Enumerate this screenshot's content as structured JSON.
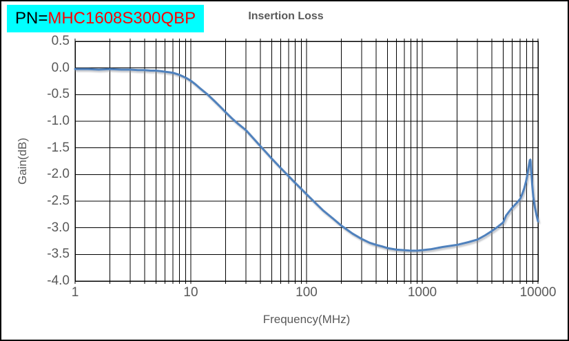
{
  "window": {
    "background": "#ffffff",
    "border_color": "#000000"
  },
  "header": {
    "pn_prefix": "PN=",
    "pn_value": "MHC1608S300QBP",
    "pn_box_bg": "#00ffff",
    "pn_prefix_color": "#000000",
    "pn_value_color": "#ff0000"
  },
  "styles": {
    "title_color": "#595959",
    "tick_label_color": "#595959",
    "axis_title_color": "#595959",
    "gridline_color": "#000000",
    "plot_border_color": "#000000",
    "curve_color": "#4f81bd",
    "curve_shadow_color": "#8a8f99"
  },
  "chart_data": {
    "type": "line",
    "title": "Insertion Loss",
    "xlabel": "Frequency(MHz)",
    "ylabel": "Gain(dB)",
    "x_scale": "log",
    "xlim": [
      1,
      10000
    ],
    "ylim": [
      -4.0,
      0.5
    ],
    "grid": "log minor+major vertical gridlines, major horizontal gridlines every 0.5 dB",
    "legend": "none",
    "x_ticks": [
      1,
      10,
      100,
      1000,
      10000
    ],
    "x_tick_labels": [
      "1",
      "10",
      "100",
      "1000",
      "10000"
    ],
    "y_ticks": [
      0.5,
      0.0,
      -0.5,
      -1.0,
      -1.5,
      -2.0,
      -2.5,
      -3.0,
      -3.5,
      -4.0
    ],
    "y_tick_labels": [
      "0.5",
      "0.0",
      "-0.5",
      "-1.0",
      "-1.5",
      "-2.0",
      "-2.5",
      "-3.0",
      "-3.5",
      "-4.0"
    ],
    "series": [
      {
        "name": "Insertion Loss",
        "color": "#4f81bd",
        "points": [
          [
            1,
            -0.02
          ],
          [
            1.3,
            -0.02
          ],
          [
            1.6,
            -0.03
          ],
          [
            2,
            -0.02
          ],
          [
            2.5,
            -0.03
          ],
          [
            3,
            -0.03
          ],
          [
            3.5,
            -0.04
          ],
          [
            4,
            -0.04
          ],
          [
            4.5,
            -0.05
          ],
          [
            5,
            -0.05
          ],
          [
            5.5,
            -0.06
          ],
          [
            6,
            -0.07
          ],
          [
            6.5,
            -0.08
          ],
          [
            7,
            -0.09
          ],
          [
            7.5,
            -0.11
          ],
          [
            8,
            -0.13
          ],
          [
            9,
            -0.18
          ],
          [
            10,
            -0.24
          ],
          [
            11,
            -0.31
          ],
          [
            12,
            -0.38
          ],
          [
            14,
            -0.5
          ],
          [
            16,
            -0.62
          ],
          [
            18,
            -0.73
          ],
          [
            20,
            -0.83
          ],
          [
            23,
            -0.96
          ],
          [
            26,
            -1.06
          ],
          [
            30,
            -1.17
          ],
          [
            35,
            -1.33
          ],
          [
            40,
            -1.47
          ],
          [
            45,
            -1.59
          ],
          [
            50,
            -1.7
          ],
          [
            60,
            -1.88
          ],
          [
            70,
            -2.03
          ],
          [
            80,
            -2.16
          ],
          [
            90,
            -2.27
          ],
          [
            100,
            -2.37
          ],
          [
            120,
            -2.54
          ],
          [
            140,
            -2.68
          ],
          [
            170,
            -2.83
          ],
          [
            200,
            -2.96
          ],
          [
            250,
            -3.11
          ],
          [
            300,
            -3.21
          ],
          [
            350,
            -3.28
          ],
          [
            400,
            -3.32
          ],
          [
            450,
            -3.35
          ],
          [
            500,
            -3.38
          ],
          [
            600,
            -3.41
          ],
          [
            700,
            -3.42
          ],
          [
            800,
            -3.43
          ],
          [
            900,
            -3.43
          ],
          [
            1000,
            -3.42
          ],
          [
            1200,
            -3.4
          ],
          [
            1500,
            -3.36
          ],
          [
            2000,
            -3.32
          ],
          [
            2500,
            -3.27
          ],
          [
            3000,
            -3.22
          ],
          [
            3500,
            -3.14
          ],
          [
            4000,
            -3.06
          ],
          [
            4500,
            -2.98
          ],
          [
            5000,
            -2.9
          ],
          [
            5300,
            -2.77
          ],
          [
            5700,
            -2.68
          ],
          [
            6000,
            -2.62
          ],
          [
            6500,
            -2.54
          ],
          [
            7000,
            -2.46
          ],
          [
            7300,
            -2.37
          ],
          [
            7600,
            -2.26
          ],
          [
            7900,
            -2.12
          ],
          [
            8100,
            -2.0
          ],
          [
            8300,
            -1.86
          ],
          [
            8500,
            -1.73
          ],
          [
            8600,
            -1.72
          ],
          [
            8750,
            -1.95
          ],
          [
            8900,
            -2.18
          ],
          [
            9100,
            -2.42
          ],
          [
            9400,
            -2.62
          ],
          [
            9700,
            -2.76
          ],
          [
            10000,
            -2.88
          ]
        ]
      }
    ]
  }
}
